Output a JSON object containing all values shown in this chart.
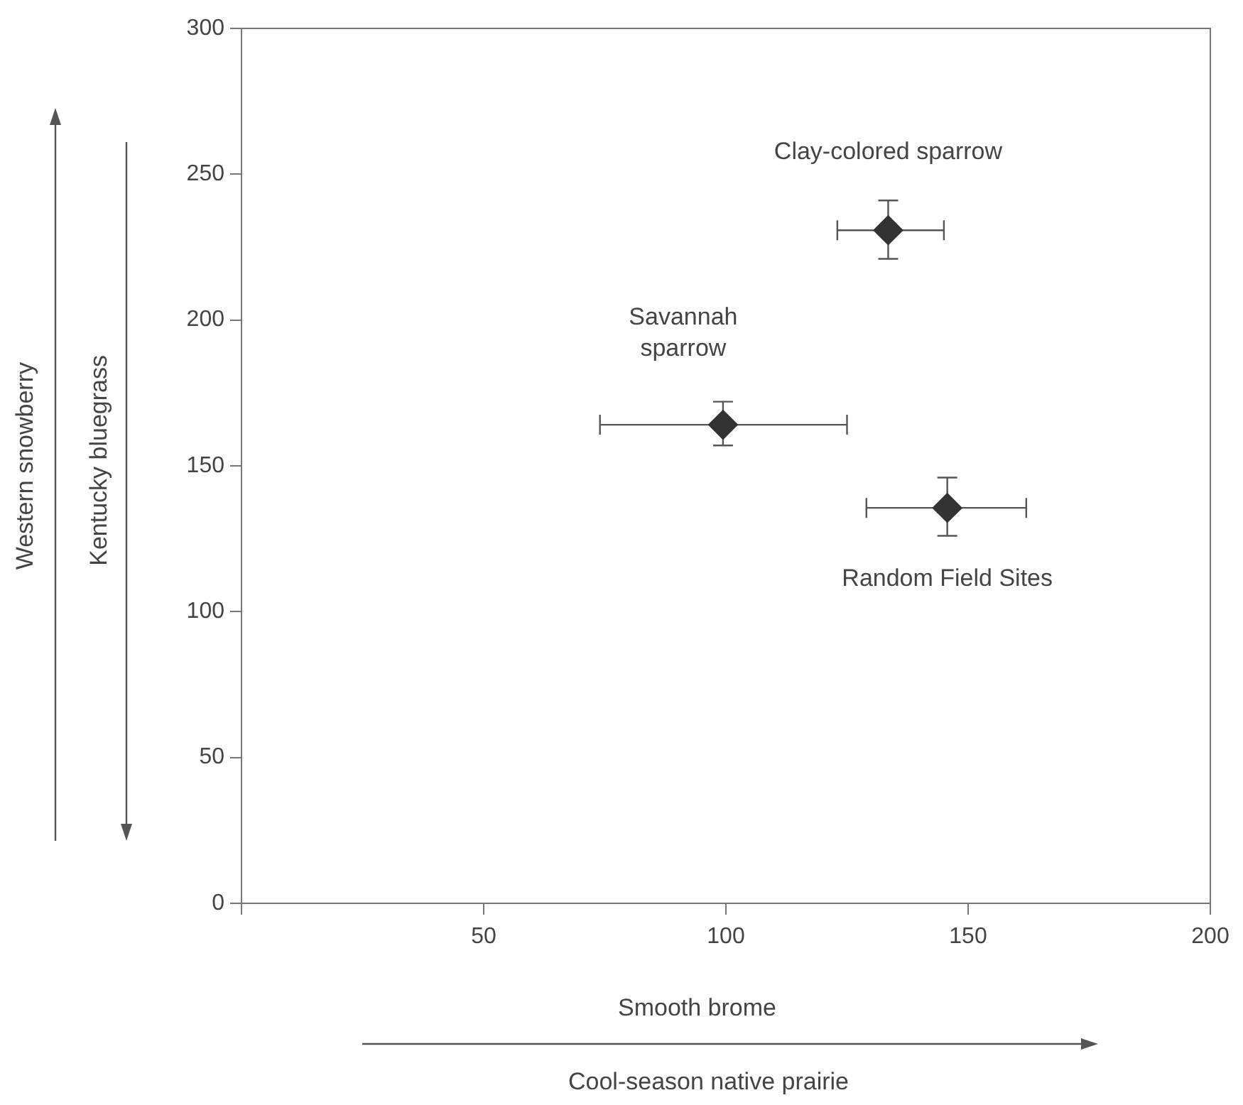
{
  "chart_data": {
    "type": "scatter",
    "x": [
      133.5,
      99.4,
      145.7
    ],
    "series": [
      {
        "color": "#333333",
        "values": [
          230.8,
          164.1,
          135.6
        ],
        "errors": [
          [
            221,
            241
          ],
          [
            157,
            172
          ],
          [
            126,
            146
          ]
        ],
        "xerrors": [
          [
            123,
            145
          ],
          [
            74,
            125
          ],
          [
            129,
            162
          ]
        ]
      }
    ],
    "marker": "diamond",
    "xlim": [
      0,
      200
    ],
    "xticks": [
      {
        "value": 0,
        "label": null
      },
      50,
      100,
      150,
      200
    ],
    "ylim": [
      0,
      300
    ],
    "yticks": [
      0,
      50,
      100,
      150,
      200,
      250,
      300
    ],
    "xlabel": "Smooth brome",
    "ylabel": "Kentucky bluegrass",
    "annotations": [
      {
        "text": "Clay-colored sparrow",
        "x": 133.5,
        "y": 230.8
      },
      {
        "text": "Savannah\nsparrow",
        "x": 99.4,
        "y": 164.1
      },
      {
        "text": "Random Field Sites",
        "x": 145.7,
        "y": 135.6
      },
      "Western snowberry",
      "Cool-season native prairie"
    ],
    "grid": false,
    "legend": false
  }
}
